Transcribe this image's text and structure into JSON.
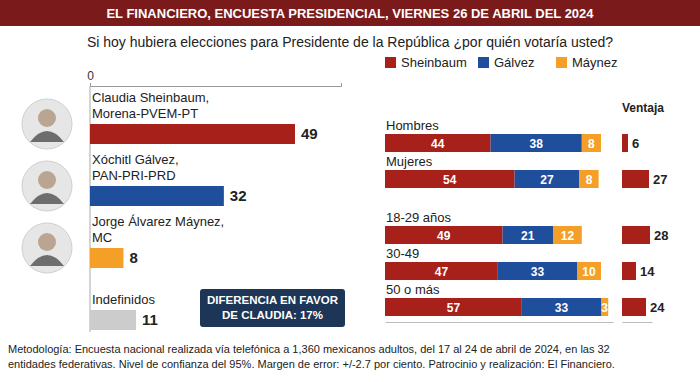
{
  "title": "EL FINANCIERO, ENCUESTA PRESIDENCIAL, VIERNES 26 DE ABRIL DEL 2024",
  "question": "Si hoy hubiera elecciones para Presidente de la República ¿por quién votaría usted?",
  "methodology": [
    "Metodología: Encuesta nacional realizada vía telefónica a 1,360 mexicanos adultos, del 17 al 24 de abril de 2024, en las 32",
    "entidades federativas. Nivel de confianza del 95%. Margen de error: +/-2.7 por ciento. Patrocinio y realización: El Financiero."
  ],
  "chart_data": [
    {
      "type": "bar",
      "orientation": "horizontal",
      "categories": [
        "Claudia Sheinbaum,\nMorena-PVEM-PT",
        "Xóchitl Gálvez,\nPAN-PRI-PRD",
        "Jorge Álvarez Máynez,\nMC",
        "Indefinidos"
      ],
      "values": [
        49,
        32,
        8,
        11
      ],
      "colors": [
        "#a8201a",
        "#1f4e9c",
        "#f4a028",
        "#cccccc"
      ],
      "xlim": [
        0,
        60
      ],
      "xticks": [
        0
      ],
      "data_labels": true,
      "annotation": "DIFERENCIA EN FAVOR\nDE CLAUDIA: 17%"
    },
    {
      "type": "bar",
      "orientation": "horizontal",
      "stacked": true,
      "legend": "top",
      "categories": [
        "Hombres",
        "Mujeres",
        "18-29 años",
        "30-49",
        "50 o más"
      ],
      "series": [
        {
          "name": "Sheinbaum",
          "color": "#a8201a",
          "values": [
            44,
            54,
            49,
            47,
            57
          ]
        },
        {
          "name": "Gálvez",
          "color": "#1f4e9c",
          "values": [
            38,
            27,
            21,
            33,
            33
          ]
        },
        {
          "name": "Máynez",
          "color": "#f4a028",
          "values": [
            8,
            8,
            12,
            10,
            3
          ]
        }
      ],
      "xlim": [
        0,
        95
      ],
      "tick_labels": false,
      "data_labels": true
    },
    {
      "type": "bar",
      "orientation": "horizontal",
      "title": "Ventaja",
      "values": [
        6,
        27,
        28,
        14,
        24
      ],
      "color": "#a8201a",
      "xlim": [
        0,
        30
      ],
      "tick_labels": false,
      "data_labels": true
    }
  ]
}
